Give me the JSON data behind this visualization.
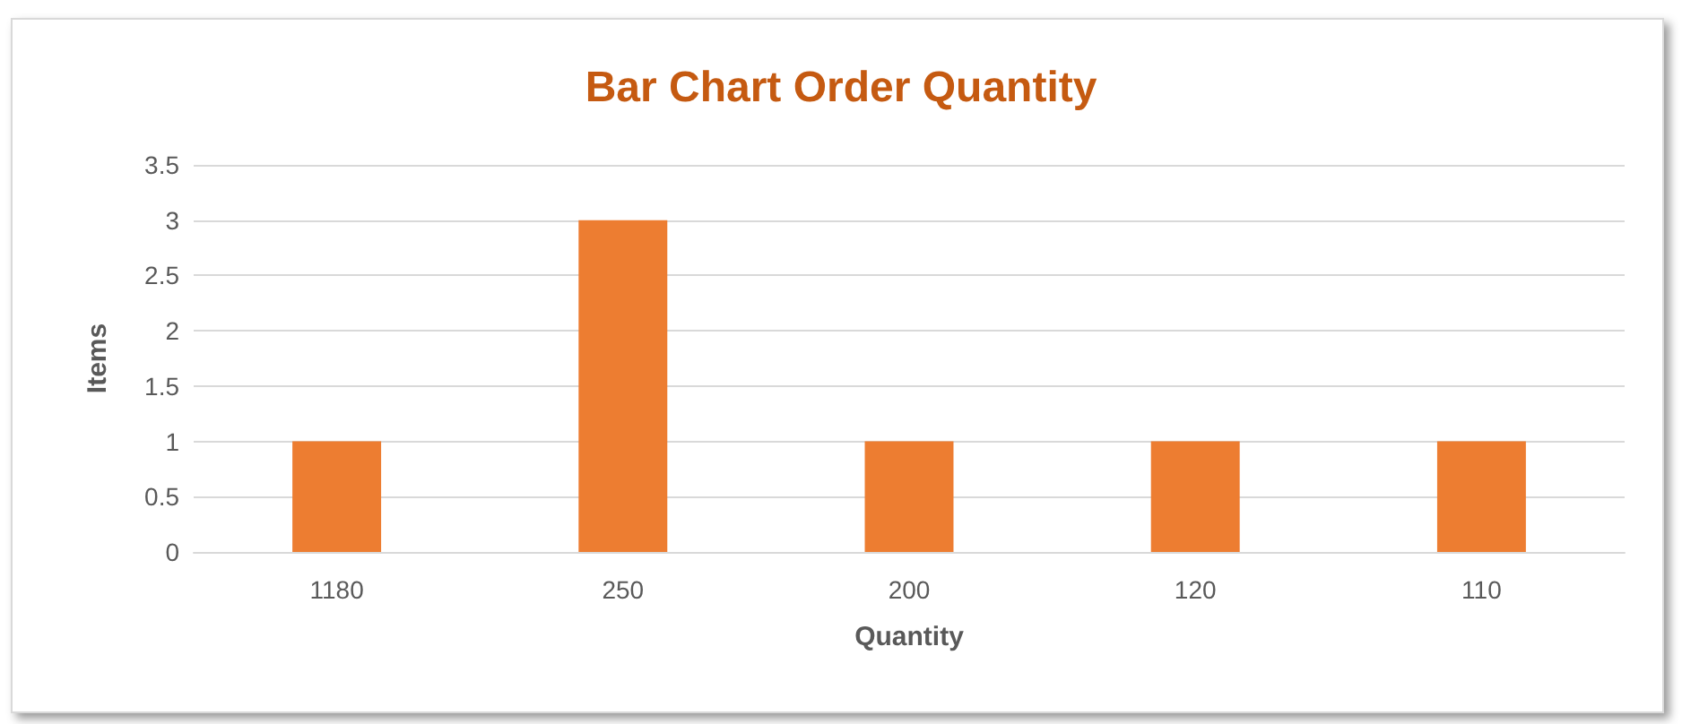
{
  "chart_data": {
    "type": "bar",
    "title": "Bar Chart Order Quantity",
    "xlabel": "Quantity",
    "ylabel": "Items",
    "categories": [
      "1180",
      "250",
      "200",
      "120",
      "110"
    ],
    "values": [
      1,
      3,
      1,
      1,
      1
    ],
    "color": "#ed7d31",
    "ylim": [
      0,
      3.5
    ],
    "yticks": [
      0,
      0.5,
      1,
      1.5,
      2,
      2.5,
      3,
      3.5
    ],
    "grid": "y"
  }
}
